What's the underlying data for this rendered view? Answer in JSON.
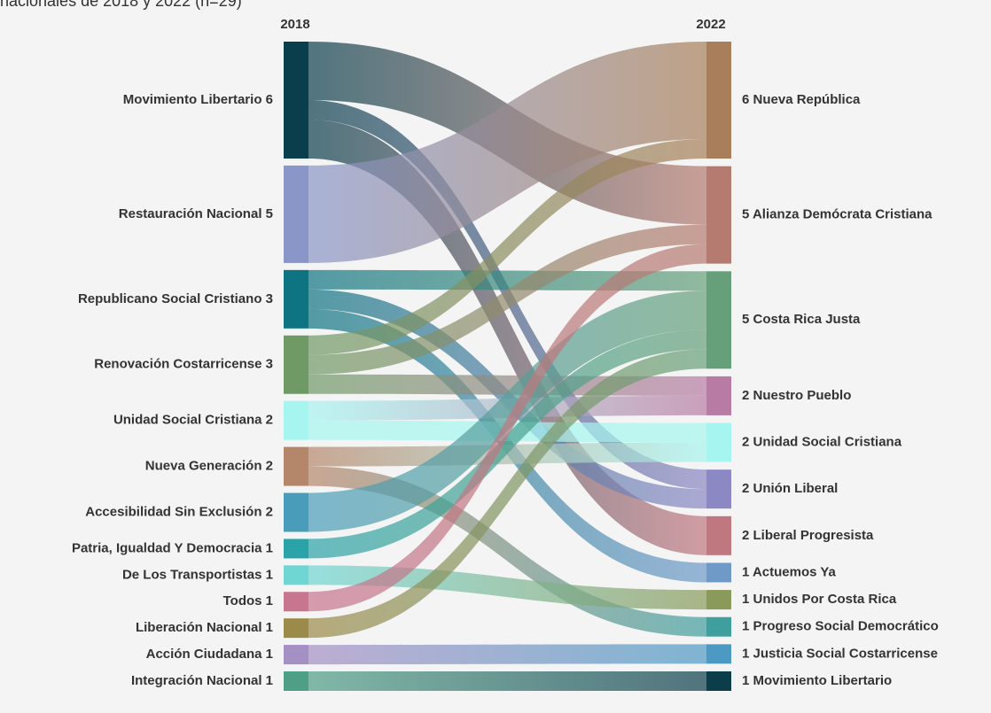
{
  "chart_data": {
    "type": "sankey",
    "title": "nacionales de 2018 y 2022 (n=29)",
    "left_header": "2018",
    "right_header": "2022",
    "left_nodes": [
      {
        "label": "Movimiento Libertario 6",
        "value": 6,
        "color": "#0b3e4c"
      },
      {
        "label": "Restauración Nacional 5",
        "value": 5,
        "color": "#8a96c8"
      },
      {
        "label": "Republicano Social Cristiano 3",
        "value": 3,
        "color": "#0f7482"
      },
      {
        "label": "Renovación Costarricense 3",
        "value": 3,
        "color": "#6f9a66"
      },
      {
        "label": "Unidad Social Cristiana 2",
        "value": 2,
        "color": "#a6f5f0"
      },
      {
        "label": "Nueva Generación 2",
        "value": 2,
        "color": "#b5876a"
      },
      {
        "label": "Accesibilidad Sin Exclusión 2",
        "value": 2,
        "color": "#4a9dba"
      },
      {
        "label": "Patria, Igualdad Y Democracia 1",
        "value": 1,
        "color": "#2aa3a8"
      },
      {
        "label": "De Los Transportistas 1",
        "value": 1,
        "color": "#70d6d3"
      },
      {
        "label": "Todos 1",
        "value": 1,
        "color": "#c87590"
      },
      {
        "label": "Liberación Nacional 1",
        "value": 1,
        "color": "#9c8a4a"
      },
      {
        "label": "Acción Ciudadana 1",
        "value": 1,
        "color": "#a590c4"
      },
      {
        "label": "Integración Nacional 1",
        "value": 1,
        "color": "#4f9e86"
      }
    ],
    "right_nodes": [
      {
        "label": "6 Nueva República",
        "value": 6,
        "color": "#a87f5a"
      },
      {
        "label": "5 Alianza Demócrata Cristiana",
        "value": 5,
        "color": "#b57a70"
      },
      {
        "label": "5 Costa Rica Justa",
        "value": 5,
        "color": "#66a07a"
      },
      {
        "label": "2 Nuestro Pueblo",
        "value": 2,
        "color": "#b87ca4"
      },
      {
        "label": "2 Unidad Social Cristiana",
        "value": 2,
        "color": "#a6f5f0"
      },
      {
        "label": "2 Unión Liberal",
        "value": 2,
        "color": "#8c88c4"
      },
      {
        "label": "2 Liberal Progresista",
        "value": 2,
        "color": "#c07880"
      },
      {
        "label": "1 Actuemos Ya",
        "value": 1,
        "color": "#6f9ac8"
      },
      {
        "label": "1 Unidos Por Costa Rica",
        "value": 1,
        "color": "#8a9a5a"
      },
      {
        "label": "1 Progreso Social Democrático",
        "value": 1,
        "color": "#3f9e9e"
      },
      {
        "label": "1 Justicia Social Costarricense",
        "value": 1,
        "color": "#4c9ac4"
      },
      {
        "label": "1 Movimiento Libertario",
        "value": 1,
        "color": "#0b3d4a"
      }
    ],
    "links": [
      {
        "source": 0,
        "target": 1,
        "value": 3
      },
      {
        "source": 0,
        "target": 5,
        "value": 1
      },
      {
        "source": 0,
        "target": 6,
        "value": 2
      },
      {
        "source": 1,
        "target": 0,
        "value": 5
      },
      {
        "source": 2,
        "target": 2,
        "value": 1
      },
      {
        "source": 2,
        "target": 5,
        "value": 1
      },
      {
        "source": 2,
        "target": 7,
        "value": 1
      },
      {
        "source": 3,
        "target": 0,
        "value": 1
      },
      {
        "source": 3,
        "target": 1,
        "value": 1
      },
      {
        "source": 3,
        "target": 3,
        "value": 1
      },
      {
        "source": 4,
        "target": 3,
        "value": 1
      },
      {
        "source": 4,
        "target": 4,
        "value": 1
      },
      {
        "source": 5,
        "target": 4,
        "value": 1
      },
      {
        "source": 5,
        "target": 9,
        "value": 1
      },
      {
        "source": 6,
        "target": 2,
        "value": 2
      },
      {
        "source": 7,
        "target": 2,
        "value": 1
      },
      {
        "source": 8,
        "target": 8,
        "value": 1
      },
      {
        "source": 9,
        "target": 1,
        "value": 1
      },
      {
        "source": 10,
        "target": 2,
        "value": 1
      },
      {
        "source": 11,
        "target": 10,
        "value": 1
      },
      {
        "source": 12,
        "target": 11,
        "value": 1
      }
    ]
  }
}
